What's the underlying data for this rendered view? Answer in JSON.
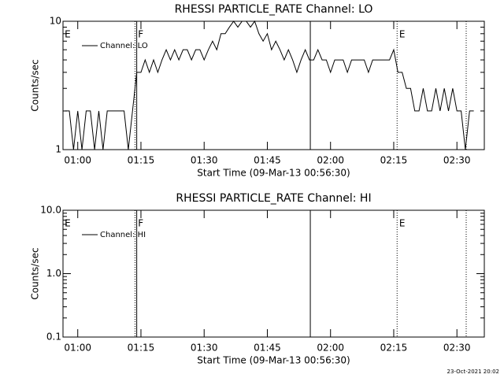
{
  "chart_data": [
    {
      "type": "line",
      "title": "RHESSI PARTICLE_RATE Channel: LO",
      "xlabel": "Start Time (09-Mar-13 00:56:30)",
      "ylabel": "Counts/sec",
      "xlim": [
        56.5,
        156.5
      ],
      "xticks": [
        {
          "value": 60,
          "label": "01:00"
        },
        {
          "value": 75,
          "label": "01:15"
        },
        {
          "value": 90,
          "label": "01:30"
        },
        {
          "value": 105,
          "label": "01:45"
        },
        {
          "value": 120,
          "label": "02:00"
        },
        {
          "value": 135,
          "label": "02:15"
        },
        {
          "value": 150,
          "label": "02:30"
        }
      ],
      "ylim": [
        1,
        10
      ],
      "yticks": [
        1,
        10
      ],
      "log_y": true,
      "minor_ticks": true,
      "legend": "upper left",
      "x": [
        57,
        58,
        59,
        60,
        61,
        62,
        63,
        64,
        65,
        66,
        67,
        68,
        69,
        70,
        71,
        72,
        73,
        74,
        75,
        76,
        77,
        78,
        79,
        80,
        81,
        82,
        83,
        84,
        85,
        86,
        87,
        88,
        89,
        90,
        91,
        92,
        93,
        94,
        95,
        96,
        97,
        98,
        99,
        100,
        101,
        102,
        103,
        104,
        105,
        106,
        107,
        108,
        109,
        110,
        111,
        112,
        113,
        114,
        115,
        116,
        117,
        118,
        119,
        120,
        121,
        122,
        123,
        124,
        125,
        126,
        127,
        128,
        129,
        130,
        131,
        132,
        133,
        134,
        135,
        136,
        137,
        138,
        139,
        140,
        141,
        142,
        143,
        144,
        145,
        146,
        147,
        148,
        149,
        150,
        151,
        152,
        153,
        154
      ],
      "series": [
        {
          "name": "Channel: LO",
          "color": "#000000",
          "values": [
            2,
            2,
            1,
            2,
            1,
            2,
            2,
            1,
            2,
            1,
            2,
            2,
            2,
            2,
            2,
            1,
            2,
            4,
            4,
            5,
            4,
            5,
            4,
            5,
            6,
            5,
            6,
            5,
            6,
            6,
            5,
            6,
            6,
            5,
            6,
            7,
            6,
            8,
            8,
            9,
            10,
            9,
            10,
            10,
            9,
            10,
            8,
            7,
            8,
            6,
            7,
            6,
            5,
            6,
            5,
            4,
            5,
            6,
            5,
            5,
            6,
            5,
            5,
            4,
            5,
            5,
            5,
            4,
            5,
            5,
            5,
            5,
            4,
            5,
            5,
            5,
            5,
            5,
            6,
            4,
            4,
            3,
            3,
            2,
            2,
            3,
            2,
            2,
            3,
            2,
            3,
            2,
            3,
            2,
            2,
            1,
            2,
            2
          ]
        }
      ],
      "vlines": [
        {
          "x": 73.6,
          "style": "dotted"
        },
        {
          "x": 74.0,
          "style": "solid"
        },
        {
          "x": 115.2,
          "style": "solid"
        },
        {
          "x": 135.8,
          "style": "dotted"
        },
        {
          "x": 152.2,
          "style": "dotted"
        }
      ],
      "annotations": [
        {
          "text": "E",
          "x": 56.9
        },
        {
          "text": "F",
          "x": 74.3
        },
        {
          "text": "E",
          "x": 136.3
        }
      ]
    },
    {
      "type": "line",
      "title": "RHESSI PARTICLE_RATE Channel: HI",
      "xlabel": "Start Time (09-Mar-13 00:56:30)",
      "ylabel": "Counts/sec",
      "xlim": [
        56.5,
        156.5
      ],
      "xticks": [
        {
          "value": 60,
          "label": "01:00"
        },
        {
          "value": 75,
          "label": "01:15"
        },
        {
          "value": 90,
          "label": "01:30"
        },
        {
          "value": 105,
          "label": "01:45"
        },
        {
          "value": 120,
          "label": "02:00"
        },
        {
          "value": 135,
          "label": "02:15"
        },
        {
          "value": 150,
          "label": "02:30"
        }
      ],
      "ylim": [
        0.1,
        10
      ],
      "yticks": [
        0.1,
        {
          "value": 1,
          "label": "1.0"
        },
        {
          "value": 10,
          "label": "10.0"
        }
      ],
      "log_y": true,
      "minor_ticks": true,
      "legend": "upper left",
      "x": [],
      "series": [
        {
          "name": "Channel: HI",
          "color": "#000000",
          "values": []
        }
      ],
      "vlines": [
        {
          "x": 73.6,
          "style": "dotted"
        },
        {
          "x": 74.0,
          "style": "solid"
        },
        {
          "x": 115.2,
          "style": "solid"
        },
        {
          "x": 135.8,
          "style": "dotted"
        },
        {
          "x": 152.2,
          "style": "dotted"
        }
      ],
      "annotations": [
        {
          "text": "E",
          "x": 56.9
        },
        {
          "text": "F",
          "x": 74.3
        },
        {
          "text": "E",
          "x": 136.3
        }
      ]
    }
  ],
  "footer": "23-Oct-2021 20:02"
}
